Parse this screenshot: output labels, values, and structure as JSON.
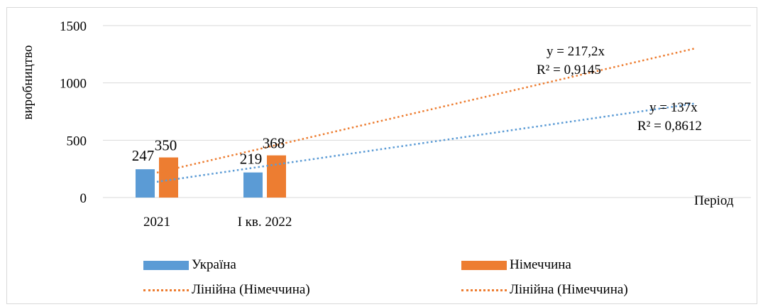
{
  "chart_data": {
    "type": "bar",
    "xlabel": "Період",
    "ylabel": "виробництво",
    "ylim": [
      0,
      1500
    ],
    "yticks": [
      "0",
      "500",
      "1000",
      "1500"
    ],
    "grid": true,
    "legend_position": "bottom",
    "categories": [
      "2021",
      "І кв. 2022"
    ],
    "series": [
      {
        "name": "Україна",
        "values": [
          247,
          219
        ],
        "labels": [
          "247",
          "219"
        ],
        "color": "#5b9bd5"
      },
      {
        "name": "Німеччина",
        "values": [
          350,
          368
        ],
        "labels": [
          "350",
          "368"
        ],
        "color": "#ed7d31"
      }
    ],
    "trendlines": [
      {
        "name": "Лінійна (Німеччина)",
        "color": "#ed7d31",
        "slope": 217.2,
        "x_range": [
          1,
          6
        ],
        "equation": "y = 217,2x",
        "r2": "R² = 0,9145"
      },
      {
        "name": "Лінійна (Німеччина)",
        "color": "#5b9bd5",
        "slope": 137,
        "x_range": [
          1,
          6
        ],
        "equation": "y = 137x",
        "r2": "R² = 0,8612"
      }
    ]
  }
}
